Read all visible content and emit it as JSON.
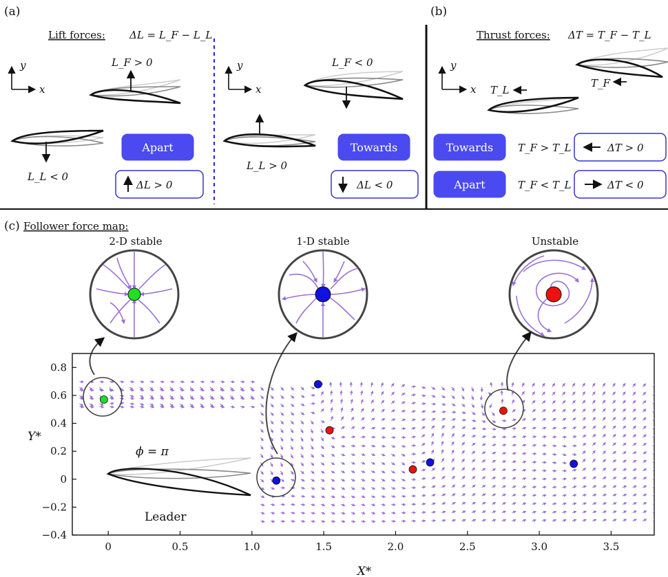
{
  "panel_a": {
    "label": "(a)",
    "lift_title": "Lift forces:",
    "lift_eq": "ΔL = L_F − L_L",
    "lf_pos": "L_F > 0",
    "ll_neg": "L_L < 0",
    "apart": "Apart",
    "dl_pos": "ΔL > 0",
    "lf_neg": "L_F < 0",
    "ll_pos": "L_L > 0",
    "towards": "Towards",
    "dl_neg": "ΔL < 0",
    "axis_y": "y",
    "axis_x": "x"
  },
  "panel_b": {
    "label": "(b)",
    "thrust_title": "Thrust forces:",
    "thrust_eq": "ΔT = T_F − T_L",
    "tl": "T_L",
    "tf": "T_F",
    "towards": "Towards",
    "apart": "Apart",
    "cond1": "T_F > T_L",
    "cond2": "T_F < T_L",
    "dt_pos": "ΔT > 0",
    "dt_neg": "ΔT < 0"
  },
  "panel_c": {
    "label": "(c)",
    "title": "Follower force map:",
    "insets": [
      "2-D stable",
      "1-D stable",
      "Unstable"
    ],
    "phase": "ϕ = π",
    "leader": "Leader",
    "colors": {
      "stable2d": "#22dd22",
      "stable1d": "#1010e0",
      "unstable": "#ee1111",
      "stream": "#9a6fd6"
    }
  },
  "chart_data": {
    "type": "scatter",
    "xlabel": "X*",
    "ylabel": "Y*",
    "xlim": [
      -0.25,
      3.8
    ],
    "ylim": [
      -0.4,
      0.9
    ],
    "xticks": [
      "0",
      "0.5",
      "1.0",
      "1.5",
      "2.0",
      "2.5",
      "3.0",
      "3.5"
    ],
    "xtick_values": [
      0,
      0.5,
      1.0,
      1.5,
      2.0,
      2.5,
      3.0,
      3.5
    ],
    "yticks": [
      "−0.4",
      "−0.2",
      "0",
      "0.2",
      "0.4",
      "0.6",
      "0.8"
    ],
    "ytick_values": [
      -0.4,
      -0.2,
      0,
      0.2,
      0.4,
      0.6,
      0.8
    ],
    "fixed_points": [
      {
        "x": -0.03,
        "y": 0.57,
        "type": "2-D stable"
      },
      {
        "x": 1.17,
        "y": -0.01,
        "type": "1-D stable"
      },
      {
        "x": 1.46,
        "y": 0.68,
        "type": "1-D stable"
      },
      {
        "x": 1.54,
        "y": 0.35,
        "type": "unstable"
      },
      {
        "x": 2.12,
        "y": 0.07,
        "type": "unstable"
      },
      {
        "x": 2.24,
        "y": 0.12,
        "type": "1-D stable"
      },
      {
        "x": 2.75,
        "y": 0.49,
        "type": "unstable"
      },
      {
        "x": 3.24,
        "y": 0.11,
        "type": "1-D stable"
      }
    ]
  }
}
